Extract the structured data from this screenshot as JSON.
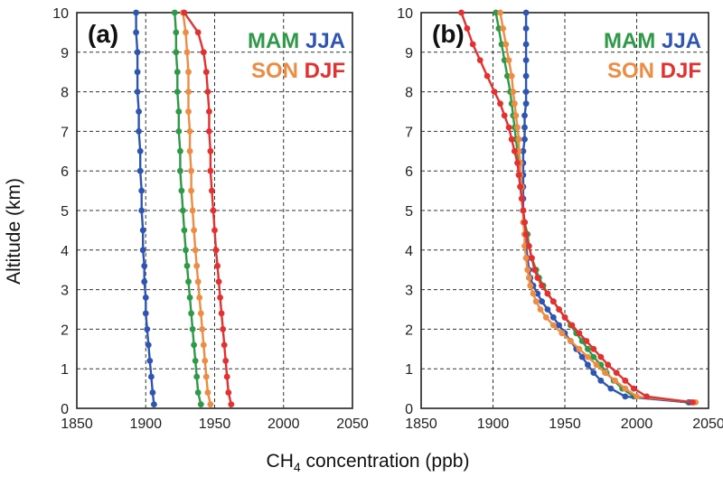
{
  "chart_data": [
    {
      "type": "line",
      "panel_label": "(a)",
      "xlim": [
        1850,
        2050
      ],
      "ylim": [
        0,
        10
      ],
      "xticks": [
        1850,
        1900,
        1950,
        2000,
        2050
      ],
      "yticks": [
        0,
        1,
        2,
        3,
        4,
        5,
        6,
        7,
        8,
        9,
        10
      ],
      "grid": true,
      "legend_rows": [
        [
          "MAM",
          "JJA"
        ],
        [
          "SON",
          "DJF"
        ]
      ],
      "altitudes": [
        0.1,
        0.4,
        0.8,
        1.2,
        1.6,
        2.0,
        2.4,
        2.8,
        3.2,
        3.6,
        4.0,
        4.5,
        5.0,
        5.5,
        6.0,
        6.5,
        7.0,
        7.5,
        8.0,
        8.5,
        9.0,
        9.5,
        10.0
      ],
      "series": [
        {
          "name": "MAM",
          "color": "#2e9a47",
          "x": [
            1940,
            1938,
            1937,
            1936,
            1935,
            1934,
            1933,
            1932,
            1931,
            1930,
            1929,
            1928,
            1927,
            1926,
            1925,
            1925,
            1924,
            1924,
            1923,
            1923,
            1922,
            1922,
            1921
          ]
        },
        {
          "name": "JJA",
          "color": "#2f55b4",
          "x": [
            1906,
            1905,
            1904,
            1903,
            1902,
            1901,
            1900,
            1900,
            1899,
            1899,
            1898,
            1898,
            1897,
            1897,
            1896,
            1896,
            1895,
            1895,
            1894,
            1894,
            1894,
            1893,
            1893
          ]
        },
        {
          "name": "SON",
          "color": "#ee8c43",
          "x": [
            1947,
            1945,
            1944,
            1943,
            1942,
            1941,
            1940,
            1939,
            1938,
            1937,
            1936,
            1935,
            1934,
            1933,
            1933,
            1932,
            1932,
            1931,
            1931,
            1931,
            1930,
            1929,
            1927
          ]
        },
        {
          "name": "DJF",
          "color": "#e53030",
          "x": [
            1962,
            1960,
            1959,
            1958,
            1957,
            1956,
            1955,
            1954,
            1953,
            1952,
            1951,
            1950,
            1949,
            1948,
            1947,
            1947,
            1946,
            1946,
            1945,
            1944,
            1942,
            1938,
            1928
          ]
        }
      ]
    },
    {
      "type": "line",
      "panel_label": "(b)",
      "xlim": [
        1850,
        2050
      ],
      "ylim": [
        0,
        10
      ],
      "xticks": [
        1850,
        1900,
        1950,
        2000,
        2050
      ],
      "yticks": [
        0,
        1,
        2,
        3,
        4,
        5,
        6,
        7,
        8,
        9,
        10
      ],
      "grid": true,
      "legend_rows": [
        [
          "MAM",
          "JJA"
        ],
        [
          "SON",
          "DJF"
        ]
      ],
      "altitudes": [
        0.15,
        0.3,
        0.5,
        0.7,
        0.9,
        1.1,
        1.3,
        1.5,
        1.7,
        1.9,
        2.1,
        2.3,
        2.5,
        2.7,
        2.9,
        3.1,
        3.3,
        3.5,
        3.8,
        4.1,
        4.4,
        4.7,
        5.0,
        5.3,
        5.6,
        5.9,
        6.2,
        6.5,
        6.8,
        7.1,
        7.4,
        7.7,
        8.0,
        8.4,
        8.8,
        9.2,
        9.6,
        10.0
      ],
      "series": [
        {
          "name": "MAM",
          "color": "#2e9a47",
          "x": [
            2036,
            1998,
            1990,
            1984,
            1979,
            1975,
            1970,
            1966,
            1962,
            1958,
            1954,
            1950,
            1946,
            1942,
            1938,
            1935,
            1932,
            1930,
            1927,
            1925,
            1924,
            1922,
            1921,
            1920,
            1919,
            1918,
            1918,
            1917,
            1916,
            1915,
            1914,
            1913,
            1912,
            1910,
            1908,
            1906,
            1904,
            1902
          ]
        },
        {
          "name": "JJA",
          "color": "#2f55b4",
          "x": [
            2037,
            1992,
            1982,
            1975,
            1970,
            1966,
            1962,
            1958,
            1954,
            1950,
            1946,
            1942,
            1938,
            1934,
            1931,
            1928,
            1926,
            1925,
            1924,
            1923,
            1922,
            1922,
            1921,
            1921,
            1921,
            1921,
            1921,
            1921,
            1922,
            1922,
            1922,
            1923,
            1923,
            1923,
            1923,
            1923,
            1923,
            1923
          ]
        },
        {
          "name": "SON",
          "color": "#ee8c43",
          "x": [
            2041,
            2000,
            1992,
            1985,
            1978,
            1972,
            1966,
            1960,
            1954,
            1948,
            1942,
            1937,
            1933,
            1930,
            1928,
            1926,
            1925,
            1924,
            1923,
            1922,
            1922,
            1921,
            1921,
            1920,
            1920,
            1919,
            1919,
            1918,
            1918,
            1917,
            1916,
            1915,
            1914,
            1913,
            1911,
            1909,
            1907,
            1905
          ]
        },
        {
          "name": "DJF",
          "color": "#e53030",
          "x": [
            2039,
            2007,
            1998,
            1992,
            1986,
            1980,
            1975,
            1970,
            1965,
            1960,
            1955,
            1950,
            1946,
            1942,
            1938,
            1934,
            1931,
            1929,
            1927,
            1925,
            1923,
            1922,
            1921,
            1920,
            1919,
            1918,
            1917,
            1915,
            1913,
            1911,
            1908,
            1905,
            1901,
            1896,
            1891,
            1886,
            1882,
            1878
          ]
        }
      ]
    }
  ],
  "axes": {
    "ylabel": "Altitude (km)",
    "xlabel_prefix": "CH",
    "xlabel_subscript": "4",
    "xlabel_suffix": " concentration (ppb)"
  }
}
